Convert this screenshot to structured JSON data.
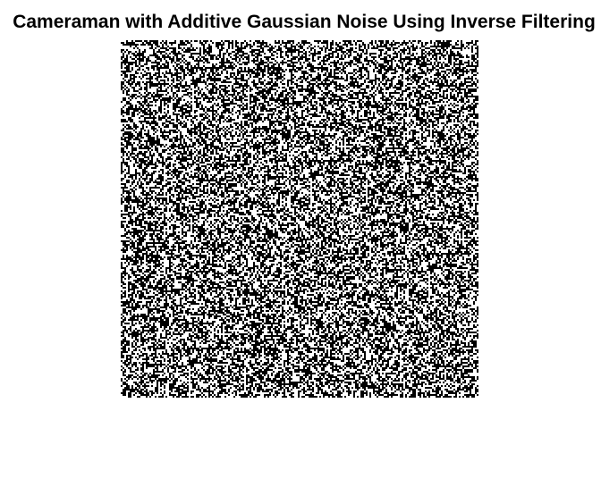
{
  "figure": {
    "title": "Cameraman with Additive Gaussian Noise Using Inverse Filtering"
  },
  "image": {
    "content": "binary-noise-pattern",
    "colors": {
      "dark": "#000000",
      "light": "#ffffff",
      "background": "#ffffff"
    }
  }
}
